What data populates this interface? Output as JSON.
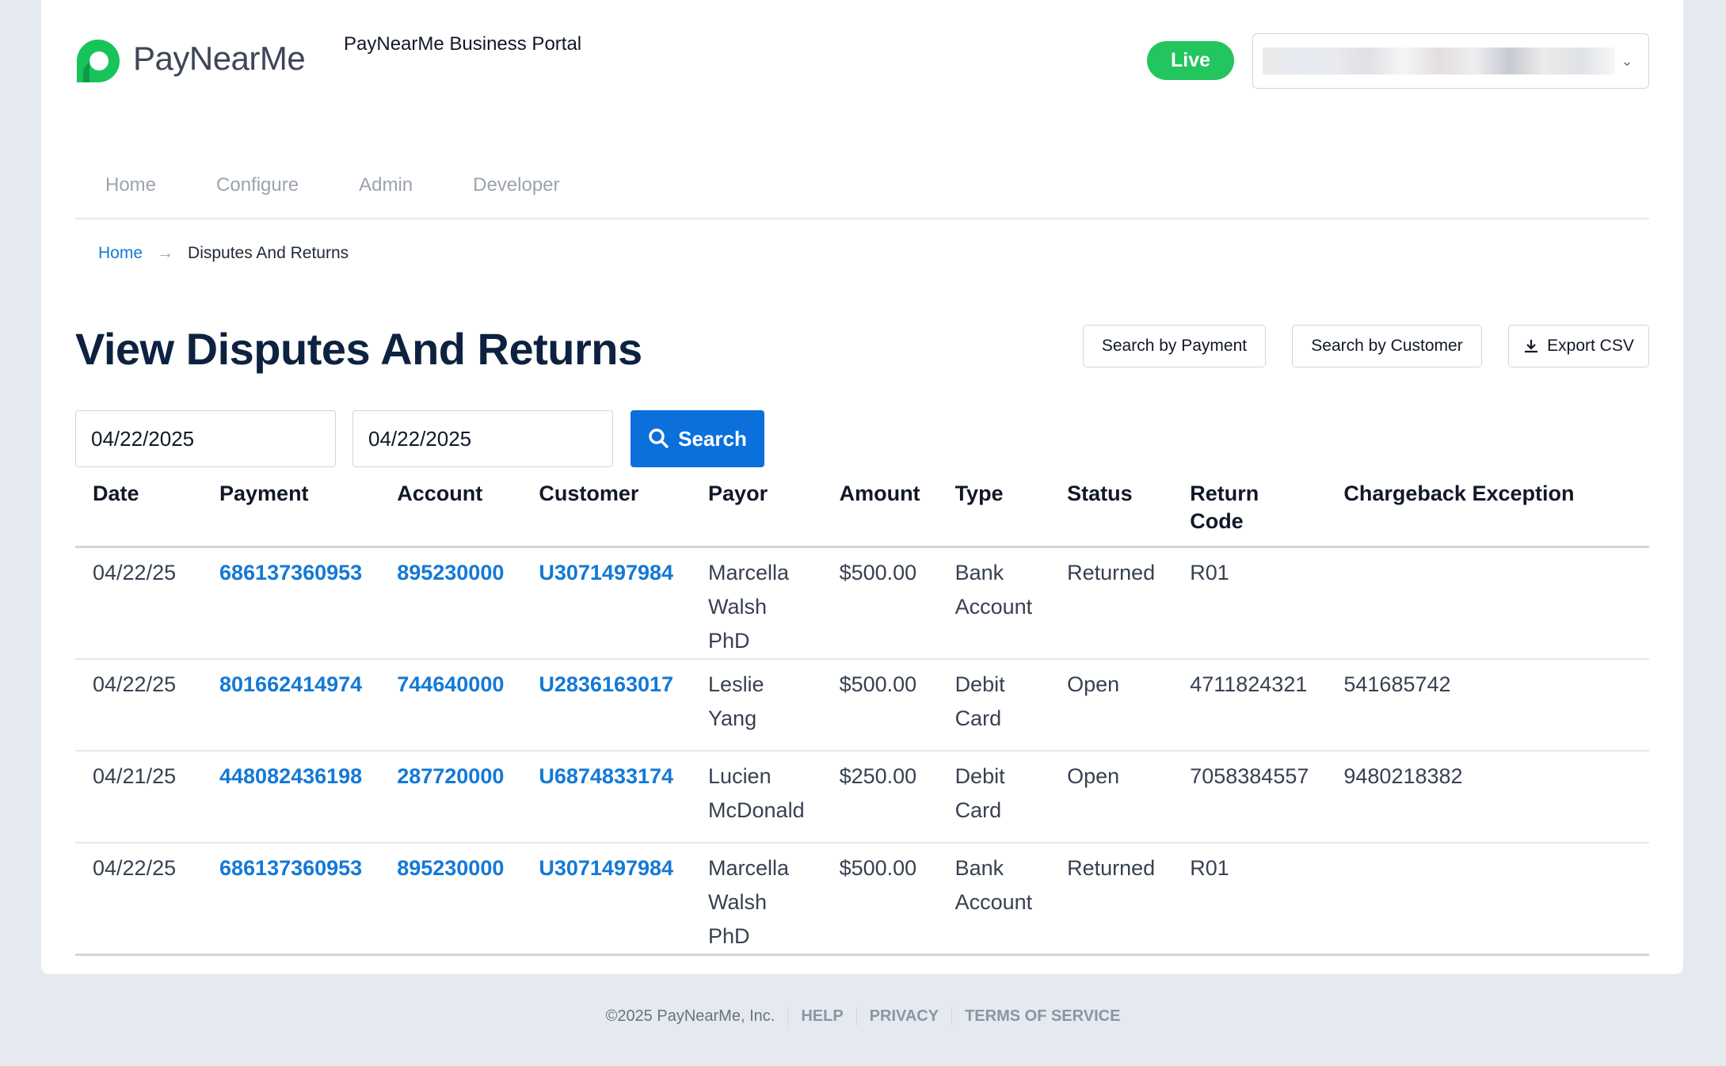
{
  "header": {
    "logo_text": "PayNearMe",
    "portal_title": "PayNearMe Business Portal",
    "mode_badge": "Live",
    "brand_color": "#22c55e"
  },
  "nav": [
    "Home",
    "Configure",
    "Admin",
    "Developer"
  ],
  "breadcrumb": {
    "home": "Home",
    "current": "Disputes And Returns"
  },
  "page": {
    "title": "View Disputes And Returns",
    "search_by_payment": "Search by Payment",
    "search_by_customer": "Search by Customer",
    "export_csv": "Export CSV"
  },
  "filters": {
    "start_date": "04/22/2025",
    "end_date": "04/22/2025",
    "search_label": "Search"
  },
  "table": {
    "headers": [
      "Date",
      "Payment",
      "Account",
      "Customer",
      "Payor",
      "Amount",
      "Type",
      "Status",
      "Return Code",
      "Chargeback Exception"
    ],
    "rows": [
      [
        "04/22/25",
        "686137360953",
        "895230000",
        "U3071497984",
        "Marcella Walsh PhD",
        "$500.00",
        "Bank Account",
        "Returned",
        "R01",
        ""
      ],
      [
        "04/22/25",
        "801662414974",
        "744640000",
        "U2836163017",
        "Leslie Yang",
        "$500.00",
        "Debit Card",
        "Open",
        "4711824321",
        "541685742"
      ],
      [
        "04/21/25",
        "448082436198",
        "287720000",
        "U6874833174",
        "Lucien McDonald",
        "$250.00",
        "Debit Card",
        "Open",
        "7058384557",
        "9480218382"
      ],
      [
        "04/22/25",
        "686137360953",
        "895230000",
        "U3071497984",
        "Marcella Walsh PhD",
        "$500.00",
        "Bank Account",
        "Returned",
        "R01",
        ""
      ]
    ]
  },
  "footer": {
    "copyright": "©2025 PayNearMe, Inc.",
    "help": "HELP",
    "privacy": "PRIVACY",
    "terms": "TERMS OF SERVICE"
  }
}
